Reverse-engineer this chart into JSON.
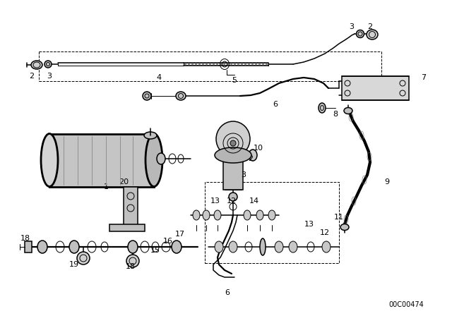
{
  "bg_color": "#ffffff",
  "part_number_text": "00C00474",
  "fig_width": 6.4,
  "fig_height": 4.48,
  "dpi": 100,
  "line_color": "#000000",
  "lw_thin": 0.7,
  "lw_med": 1.1,
  "lw_thick": 2.0,
  "lw_hose": 3.0
}
